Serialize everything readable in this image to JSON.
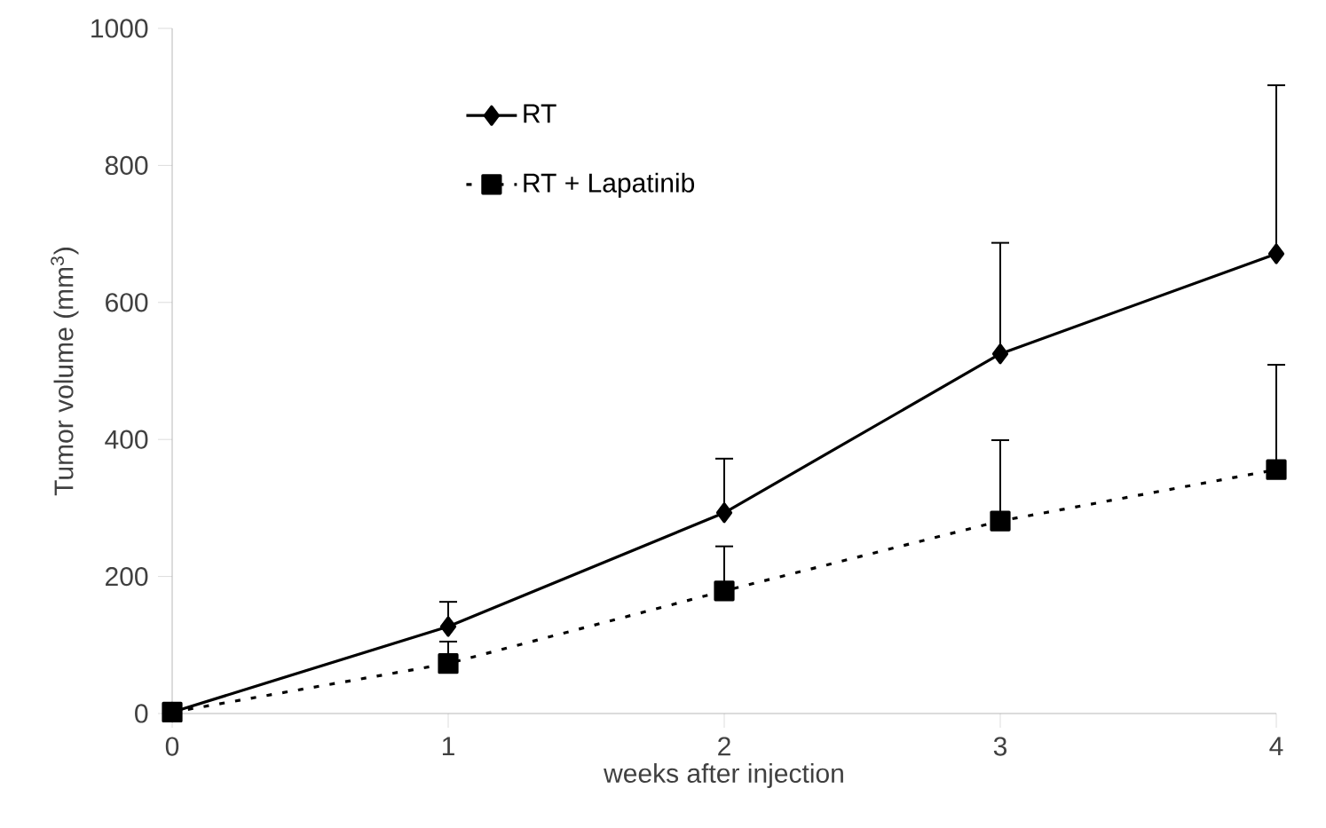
{
  "chart_data": {
    "type": "line",
    "xlabel": "weeks after injection",
    "ylabel": "Tumor volume (mm$^{3}$)",
    "x": [
      0,
      1,
      2,
      3,
      4
    ],
    "series": [
      {
        "name": "RT",
        "color": "#000000",
        "marker": "diamond",
        "line_style": "solid",
        "values": [
          2,
          127,
          293,
          525,
          671
        ],
        "errors": [
          null,
          [
            127,
            163
          ],
          [
            293,
            372
          ],
          [
            525,
            687
          ],
          [
            671,
            917
          ]
        ]
      },
      {
        "name": "RT + Lapatinib",
        "color": "#000000",
        "marker": "square",
        "line_style": "dotted",
        "values": [
          2,
          73,
          179,
          281,
          356
        ],
        "errors": [
          null,
          [
            73,
            105
          ],
          [
            179,
            244
          ],
          [
            281,
            399
          ],
          [
            356,
            509
          ]
        ]
      }
    ],
    "xlim": [
      0,
      4
    ],
    "ylim": [
      0,
      1000
    ],
    "xticks": [
      0,
      1,
      2,
      3,
      4
    ],
    "yticks": [
      0,
      200,
      400,
      600,
      800,
      1000
    ],
    "grid": false,
    "legend": "top left"
  }
}
